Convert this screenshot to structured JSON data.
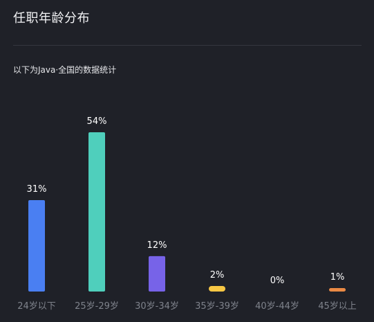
{
  "header": {
    "title": "任职年龄分布",
    "subtitle": "以下为Java·全国的数据统计"
  },
  "chart_data": {
    "type": "bar",
    "categories": [
      "24岁以下",
      "25岁-29岁",
      "30岁-34岁",
      "35岁-39岁",
      "40岁-44岁",
      "45岁以上"
    ],
    "values": [
      31,
      54,
      12,
      2,
      0,
      1
    ],
    "value_labels": [
      "31%",
      "54%",
      "12%",
      "2%",
      "0%",
      "1%"
    ],
    "colors": [
      "#4a7ff2",
      "#4fcfbc",
      "#7763e8",
      "#f7c744",
      "#6e6e6e",
      "#ea8a45"
    ],
    "title": "",
    "xlabel": "",
    "ylabel": "",
    "ylim": [
      0,
      54
    ],
    "grid": false,
    "legend": "none"
  }
}
